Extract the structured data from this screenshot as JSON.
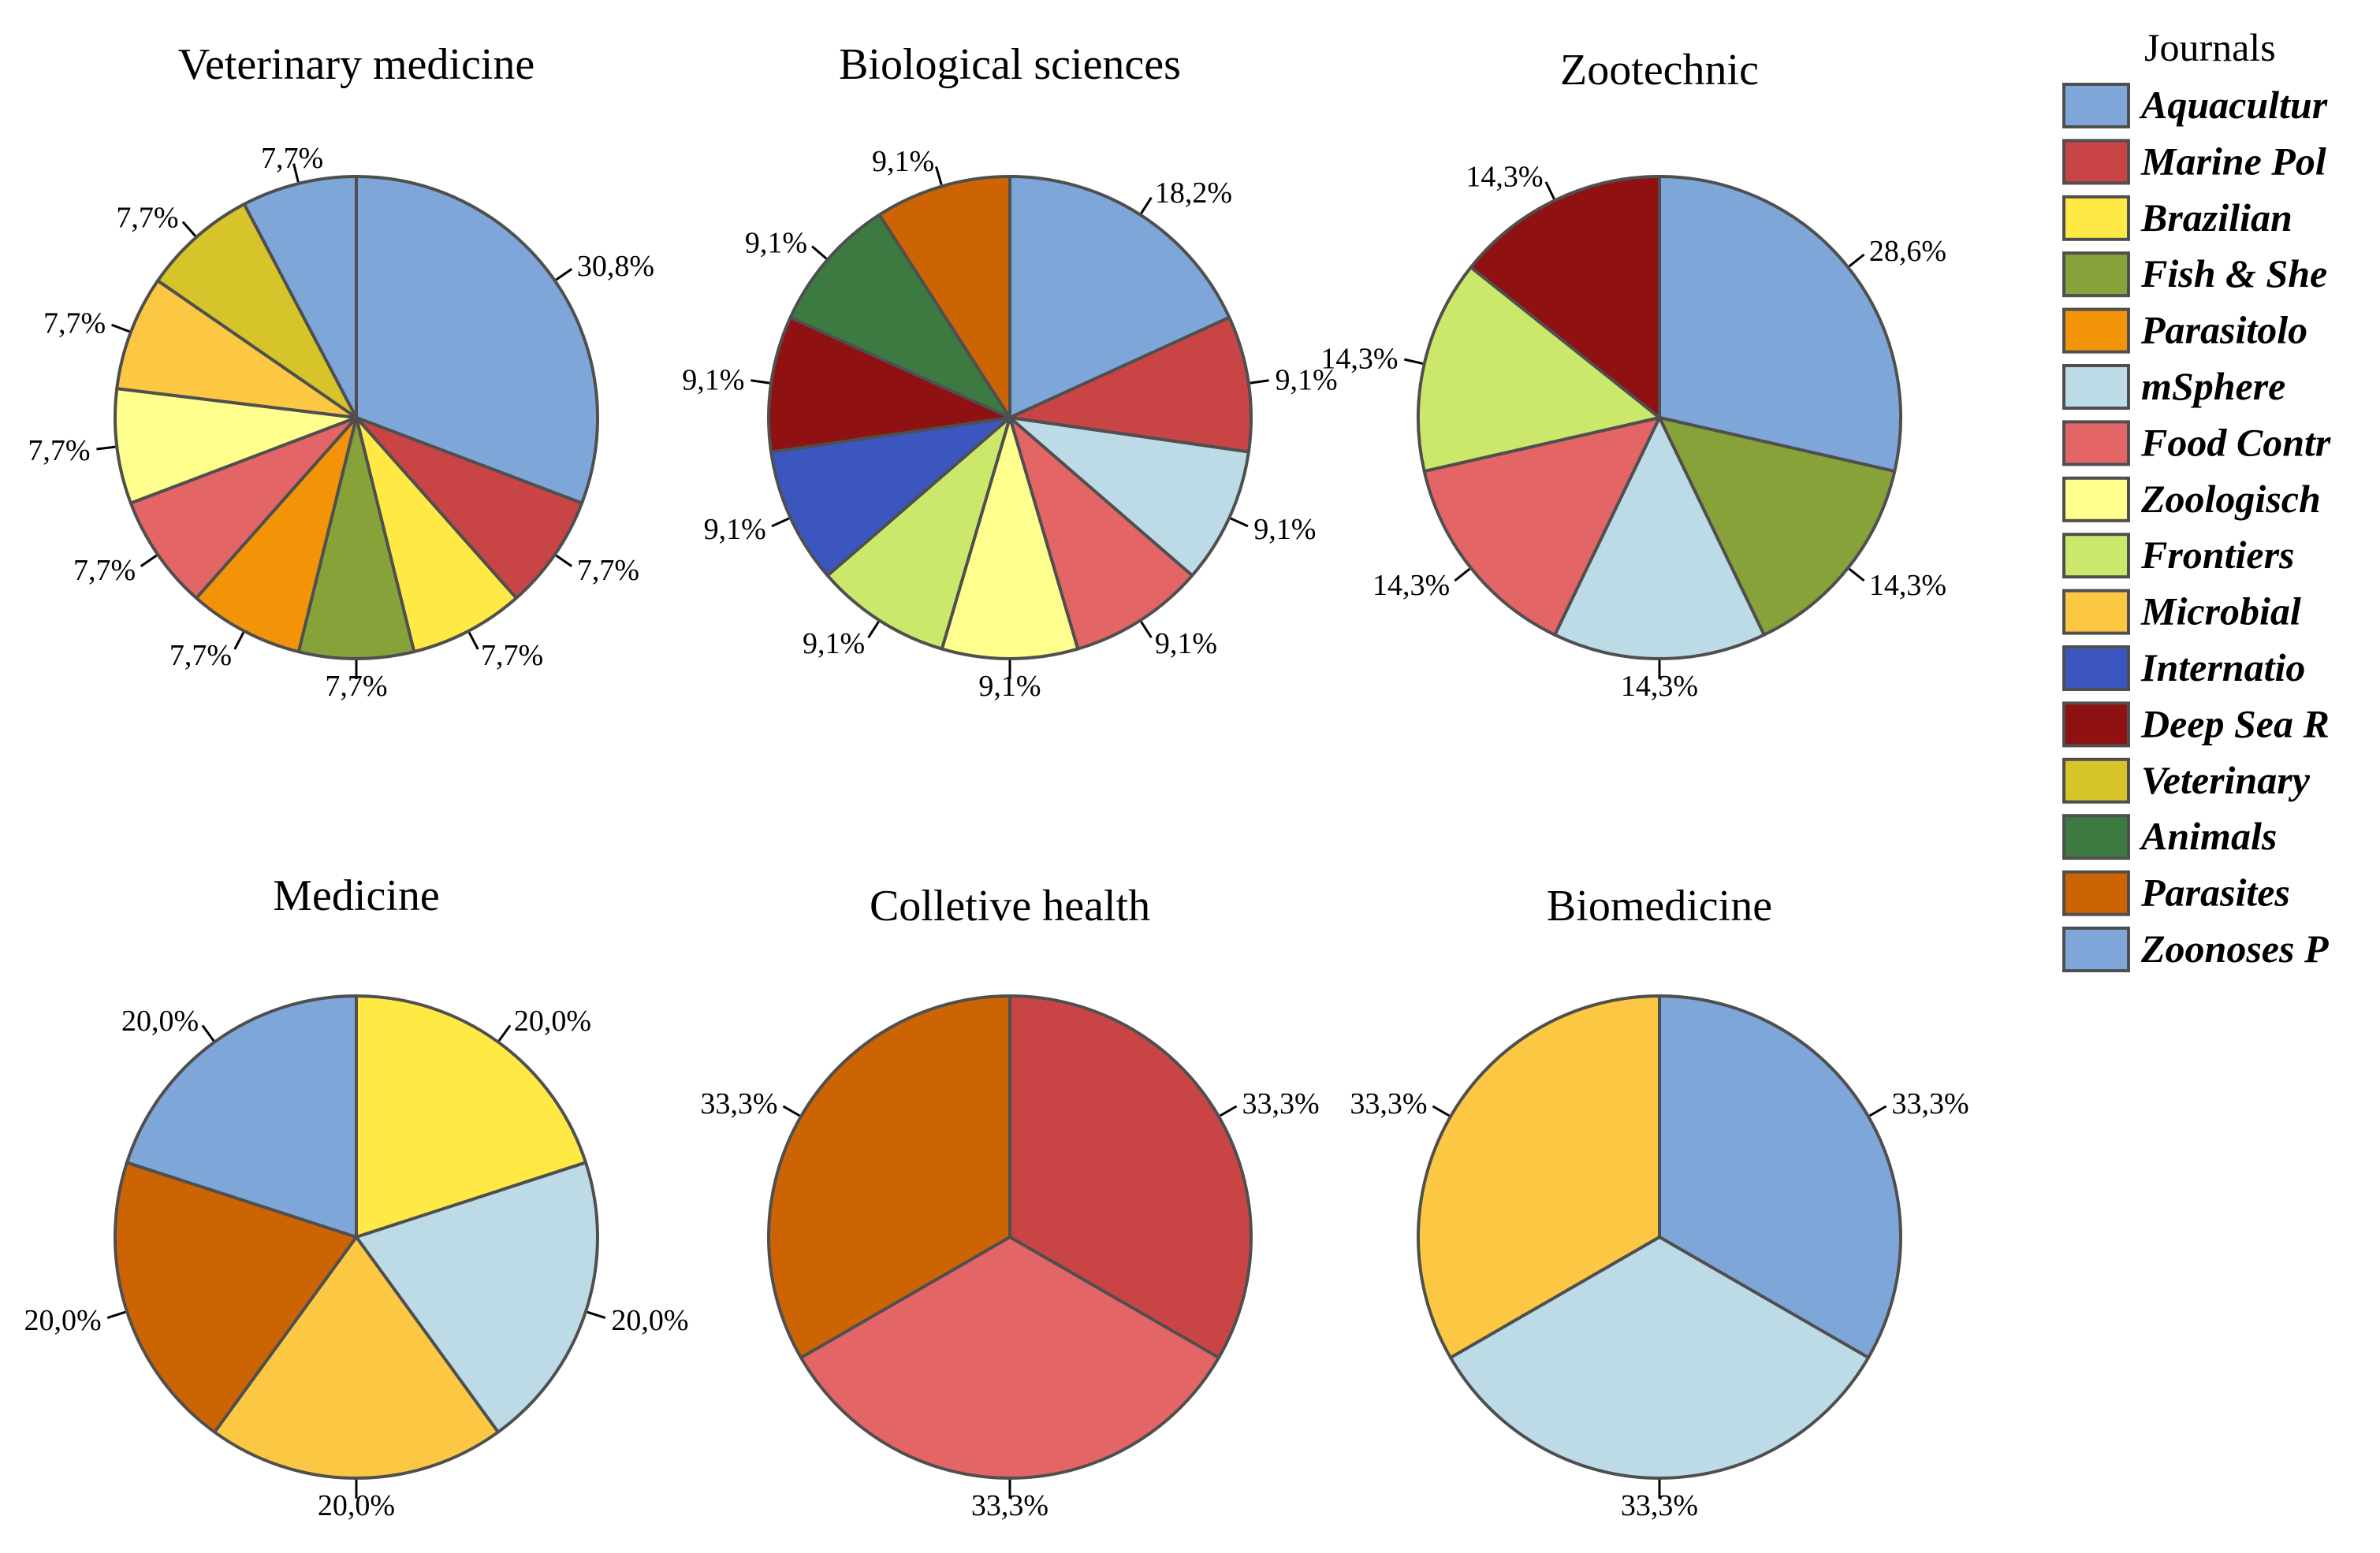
{
  "chart_data": {
    "type": "pie",
    "legend": {
      "title": "Journals",
      "placement": "right",
      "items": [
        {
          "label": "Aquacultur",
          "color": "#7ea6d8"
        },
        {
          "label": "Marine Pol",
          "color": "#c94545"
        },
        {
          "label": "Brazilian",
          "color": "#ffe944"
        },
        {
          "label": "Fish & She",
          "color": "#88a23a"
        },
        {
          "label": "Parasitolo",
          "color": "#f39408"
        },
        {
          "label": "mSphere",
          "color": "#bddbe6"
        },
        {
          "label": "Food Contr",
          "color": "#e46565"
        },
        {
          "label": "Zoologisch",
          "color": "#ffff8d"
        },
        {
          "label": "Frontiers",
          "color": "#cce86a"
        },
        {
          "label": "Microbial",
          "color": "#fcc844"
        },
        {
          "label": "Internatio",
          "color": "#3c56c0"
        },
        {
          "label": "Deep Sea R",
          "color": "#8f1111"
        },
        {
          "label": "Veterinary",
          "color": "#d6c42a"
        },
        {
          "label": "Animals",
          "color": "#3d7a42"
        },
        {
          "label": "Parasites",
          "color": "#cc6404"
        },
        {
          "label": "Zoonoses P",
          "color": "#7ea6d8"
        }
      ]
    },
    "charts": [
      {
        "title": "Veterinary medicine",
        "slices": [
          {
            "journal": "Aquacultur",
            "value": 30.8,
            "label": "30,8%"
          },
          {
            "journal": "Marine Pol",
            "value": 7.7,
            "label": "7,7%"
          },
          {
            "journal": "Brazilian",
            "value": 7.7,
            "label": "7,7%"
          },
          {
            "journal": "Fish & She",
            "value": 7.7,
            "label": "7,7%"
          },
          {
            "journal": "Parasitolo",
            "value": 7.7,
            "label": "7,7%"
          },
          {
            "journal": "Food Contr",
            "value": 7.7,
            "label": "7,7%"
          },
          {
            "journal": "Zoologisch",
            "value": 7.7,
            "label": "7,7%"
          },
          {
            "journal": "Microbial",
            "value": 7.7,
            "label": "7,7%"
          },
          {
            "journal": "Veterinary",
            "value": 7.7,
            "label": "7,7%"
          },
          {
            "journal": "Zoonoses P",
            "value": 7.7,
            "label": "7,7%"
          }
        ]
      },
      {
        "title": "Biological sciences",
        "slices": [
          {
            "journal": "Aquacultur",
            "value": 18.2,
            "label": "18,2%"
          },
          {
            "journal": "Marine Pol",
            "value": 9.1,
            "label": "9,1%"
          },
          {
            "journal": "mSphere",
            "value": 9.1,
            "label": "9,1%"
          },
          {
            "journal": "Food Contr",
            "value": 9.1,
            "label": "9,1%"
          },
          {
            "journal": "Zoologisch",
            "value": 9.1,
            "label": "9,1%"
          },
          {
            "journal": "Frontiers",
            "value": 9.1,
            "label": "9,1%"
          },
          {
            "journal": "Internatio",
            "value": 9.1,
            "label": "9,1%"
          },
          {
            "journal": "Deep Sea R",
            "value": 9.1,
            "label": "9,1%"
          },
          {
            "journal": "Animals",
            "value": 9.1,
            "label": "9,1%"
          },
          {
            "journal": "Parasites",
            "value": 9.1,
            "label": "9,1%"
          }
        ]
      },
      {
        "title": "Zootechnic",
        "slices": [
          {
            "journal": "Aquacultur",
            "value": 28.6,
            "label": "28,6%"
          },
          {
            "journal": "Fish & She",
            "value": 14.3,
            "label": "14,3%"
          },
          {
            "journal": "mSphere",
            "value": 14.3,
            "label": "14,3%"
          },
          {
            "journal": "Food Contr",
            "value": 14.3,
            "label": "14,3%"
          },
          {
            "journal": "Frontiers",
            "value": 14.3,
            "label": "14,3%"
          },
          {
            "journal": "Deep Sea R",
            "value": 14.3,
            "label": "14,3%"
          }
        ]
      },
      {
        "title": "Medicine",
        "slices": [
          {
            "journal": "Brazilian",
            "value": 20.0,
            "label": "20,0%"
          },
          {
            "journal": "mSphere",
            "value": 20.0,
            "label": "20,0%"
          },
          {
            "journal": "Microbial",
            "value": 20.0,
            "label": "20,0%"
          },
          {
            "journal": "Parasites",
            "value": 20.0,
            "label": "20,0%"
          },
          {
            "journal": "Zoonoses P",
            "value": 20.0,
            "label": "20,0%"
          }
        ]
      },
      {
        "title": "Colletive health",
        "slices": [
          {
            "journal": "Marine Pol",
            "value": 33.3,
            "label": "33,3%"
          },
          {
            "journal": "Food Contr",
            "value": 33.3,
            "label": "33,3%"
          },
          {
            "journal": "Parasites",
            "value": 33.3,
            "label": "33,3%"
          }
        ]
      },
      {
        "title": "Biomedicine",
        "slices": [
          {
            "journal": "Aquacultur",
            "value": 33.3,
            "label": "33,3%"
          },
          {
            "journal": "mSphere",
            "value": 33.3,
            "label": "33,3%"
          },
          {
            "journal": "Microbial",
            "value": 33.3,
            "label": "33,3%"
          }
        ]
      }
    ]
  }
}
